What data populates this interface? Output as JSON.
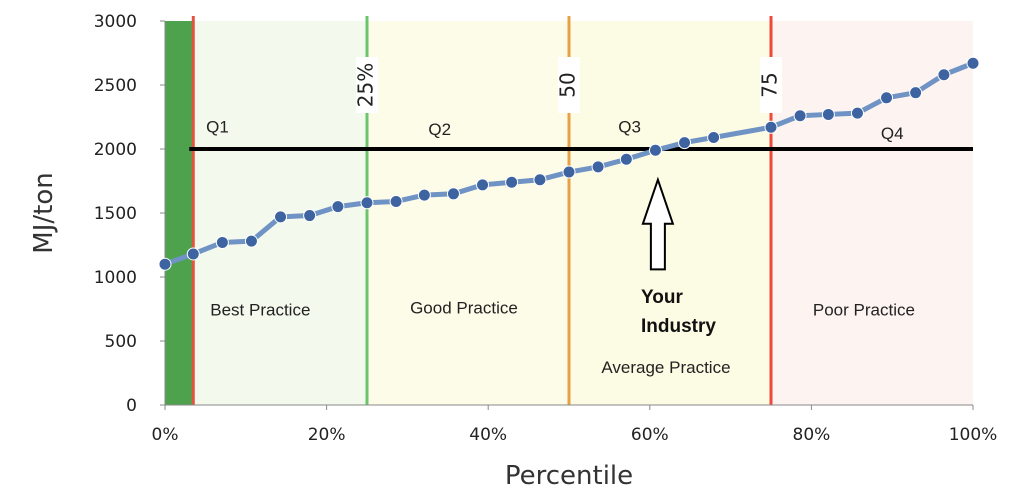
{
  "chart_data": {
    "type": "line",
    "xlabel": "Percentile",
    "ylabel": "MJ/ton",
    "xlim": [
      0,
      100
    ],
    "ylim": [
      0,
      3000
    ],
    "x_ticks": [
      "0%",
      "20%",
      "40%",
      "60%",
      "80%",
      "100%"
    ],
    "x_tick_values": [
      0,
      20,
      40,
      60,
      80,
      100
    ],
    "y_ticks": [
      "0",
      "500",
      "1000",
      "1500",
      "2000",
      "2500",
      "3000"
    ],
    "y_tick_values": [
      0,
      500,
      1000,
      1500,
      2000,
      2500,
      3000
    ],
    "series": [
      {
        "x": [
          0,
          3.5,
          7.1,
          10.7,
          14.3,
          17.9,
          21.4,
          25.0,
          28.6,
          32.1,
          35.7,
          39.3,
          42.9,
          46.4,
          50.0,
          53.6,
          57.1,
          60.7,
          64.3,
          67.9,
          75.0,
          78.6,
          82.1,
          85.7,
          89.3,
          92.9,
          96.4,
          100
        ],
        "values": [
          1100,
          1180,
          1270,
          1280,
          1470,
          1480,
          1550,
          1580,
          1590,
          1640,
          1650,
          1720,
          1740,
          1760,
          1820,
          1860,
          1920,
          1990,
          2050,
          2090,
          2170,
          2260,
          2270,
          2280,
          2400,
          2440,
          2580,
          2670
        ],
        "color": "#6f93c4",
        "marker_color": "#3d63a0"
      }
    ],
    "reference_line": {
      "y": 2000,
      "x_start": 3,
      "x_end": 100,
      "color": "#000000"
    },
    "zones": [
      {
        "x0": 0,
        "x1": 3.5,
        "fill": "#4ea24e"
      },
      {
        "x0": 3.5,
        "x1": 25,
        "fill": "#f4f9ee"
      },
      {
        "x0": 25,
        "x1": 50,
        "fill": "#fdfce8"
      },
      {
        "x0": 50,
        "x1": 75,
        "fill": "#fcfbe4"
      },
      {
        "x0": 75,
        "x1": 100,
        "fill": "#fdf3f1"
      }
    ],
    "vertical_lines": [
      {
        "x": 3.5,
        "color": "#e0553e",
        "label": ""
      },
      {
        "x": 25,
        "color": "#6cc46c",
        "label": "25%"
      },
      {
        "x": 50,
        "color": "#e8a044",
        "label": "50"
      },
      {
        "x": 75,
        "color": "#f0493b",
        "label": "75"
      }
    ],
    "annotations": [
      {
        "text": "Q1",
        "x": 6.5,
        "y": 2130
      },
      {
        "text": "Q2",
        "x": 34,
        "y": 2110
      },
      {
        "text": "Q3",
        "x": 57.5,
        "y": 2130
      },
      {
        "text": "Q4",
        "x": 90,
        "y": 2080
      },
      {
        "text": "Best Practice",
        "x": 11.8,
        "y": 700
      },
      {
        "text": "Good Practice",
        "x": 37,
        "y": 715
      },
      {
        "text": "Average Practice",
        "x": 62,
        "y": 250
      },
      {
        "text": "Poor Practice",
        "x": 86.5,
        "y": 700
      }
    ],
    "callout": {
      "lines": [
        "Your",
        "Industry"
      ],
      "arrow_x": 61,
      "arrow_tip_y": 1760,
      "arrow_base_y": 1060
    },
    "legend": "none",
    "grid": false
  }
}
